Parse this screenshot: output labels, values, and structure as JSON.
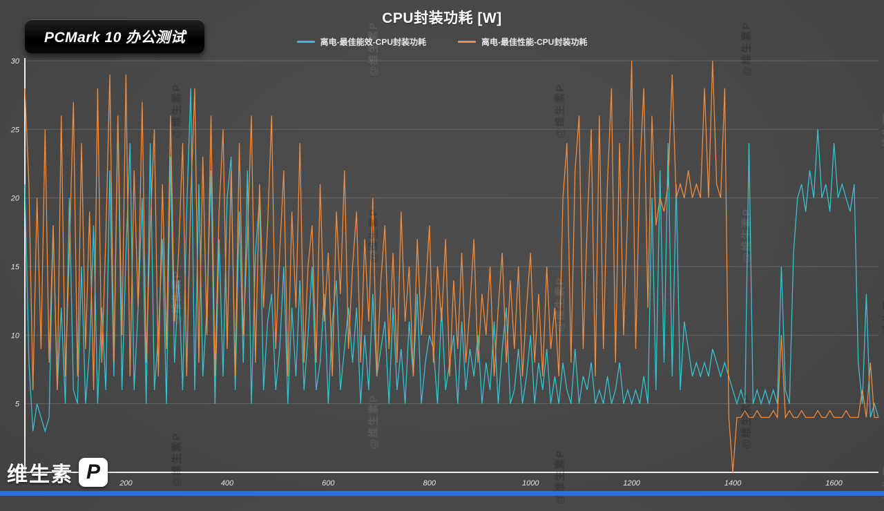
{
  "badge": {
    "label": "PCMark 10 办公测试"
  },
  "footer": {
    "brand": "维生素",
    "logo_letter": "P"
  },
  "watermark": {
    "text": "@维生素P"
  },
  "chart_data": {
    "type": "line",
    "title": "CPU封装功耗 [W]",
    "xlabel": "",
    "ylabel": "",
    "xlim": [
      0,
      1688
    ],
    "ylim": [
      0,
      30
    ],
    "x_ticks": [
      200,
      400,
      600,
      800,
      1000,
      1200,
      1400,
      1600
    ],
    "y_ticks": [
      5,
      10,
      15,
      20,
      25,
      30
    ],
    "grid": "horizontal",
    "legend_position": "top",
    "x_start": 0,
    "x_step": 8,
    "series": [
      {
        "name": "离电-最佳能效-CPU封装功耗",
        "color": "#35c3d4",
        "values": [
          21,
          8,
          3,
          5,
          4,
          3,
          4,
          18,
          6,
          12,
          5,
          20,
          6,
          5,
          15,
          5,
          9,
          18,
          5,
          12,
          6,
          22,
          7,
          26,
          6,
          16,
          24,
          6,
          12,
          20,
          5,
          24,
          6,
          10,
          17,
          5,
          23,
          8,
          14,
          6,
          19,
          28,
          6,
          21,
          7,
          12,
          22,
          5,
          17,
          7,
          20,
          23,
          6,
          19,
          8,
          22,
          5,
          16,
          20,
          6,
          11,
          13,
          6,
          9,
          15,
          5,
          12,
          7,
          14,
          6,
          10,
          15,
          6,
          8,
          13,
          5,
          11,
          14,
          6,
          9,
          12,
          8,
          12,
          5,
          10,
          6,
          13,
          7,
          9,
          11,
          5,
          12,
          6,
          9,
          5,
          11,
          7,
          13,
          5,
          8,
          10,
          9,
          5,
          12,
          6,
          8,
          10,
          5,
          11,
          6,
          9,
          7,
          10,
          5,
          8,
          6,
          11,
          5,
          9,
          12,
          5,
          6,
          9,
          5,
          7,
          10,
          5,
          8,
          6,
          9,
          5,
          7,
          5,
          8,
          6,
          5,
          9,
          5,
          7,
          6,
          8,
          5,
          6,
          5,
          7,
          5,
          6,
          8,
          5,
          6,
          5,
          6,
          5,
          7,
          5,
          20,
          6,
          22,
          8,
          24,
          7,
          21,
          6,
          11,
          9,
          7,
          8,
          7,
          8,
          7,
          9,
          8,
          7,
          8,
          7,
          6,
          5,
          6,
          5,
          24,
          5,
          6,
          5,
          6,
          5,
          6,
          5,
          15,
          6,
          5,
          16,
          20,
          21,
          19,
          22,
          20,
          25,
          20,
          21,
          19,
          24,
          20,
          21,
          20,
          19,
          21,
          8,
          5,
          13,
          4,
          5,
          4
        ]
      },
      {
        "name": "离电-最佳性能-CPU封装功耗",
        "color": "#f28c3e",
        "values": [
          28,
          21,
          6,
          20,
          9,
          25,
          8,
          18,
          6,
          26,
          7,
          16,
          27,
          7,
          24,
          9,
          19,
          6,
          28,
          8,
          17,
          29,
          8,
          26,
          10,
          29,
          7,
          22,
          12,
          27,
          8,
          18,
          25,
          7,
          21,
          9,
          26,
          11,
          16,
          24,
          7,
          20,
          28,
          8,
          23,
          10,
          26,
          7,
          19,
          25,
          9,
          22,
          7,
          24,
          10,
          17,
          26,
          8,
          21,
          12,
          18,
          26,
          9,
          16,
          22,
          7,
          19,
          12,
          24,
          8,
          15,
          18,
          8,
          21,
          11,
          16,
          7,
          19,
          13,
          22,
          9,
          15,
          19,
          8,
          17,
          11,
          20,
          7,
          14,
          18,
          9,
          16,
          8,
          19,
          11,
          15,
          7,
          17,
          10,
          13,
          18,
          8,
          15,
          11,
          17,
          7,
          14,
          9,
          16,
          8,
          12,
          17,
          8,
          13,
          10,
          15,
          7,
          12,
          16,
          8,
          14,
          9,
          15,
          7,
          12,
          16,
          8,
          13,
          7,
          15,
          9,
          12,
          7,
          20,
          24,
          8,
          22,
          26,
          9,
          18,
          25,
          7,
          26,
          9,
          21,
          28,
          8,
          24,
          10,
          19,
          30,
          9,
          22,
          28,
          12,
          26,
          18,
          20,
          19,
          21,
          29,
          20,
          21,
          20,
          22,
          20,
          21,
          20,
          28,
          20,
          30,
          21,
          20,
          28,
          4,
          0,
          4,
          4,
          4.5,
          4,
          4,
          4.5,
          4,
          4,
          4,
          4.5,
          4,
          10,
          4,
          4.5,
          4,
          4,
          4.5,
          4,
          4,
          4,
          4.5,
          4,
          4,
          4.5,
          4,
          4,
          4,
          4.5,
          4,
          4,
          4,
          6,
          4,
          8,
          4,
          4
        ]
      }
    ]
  }
}
